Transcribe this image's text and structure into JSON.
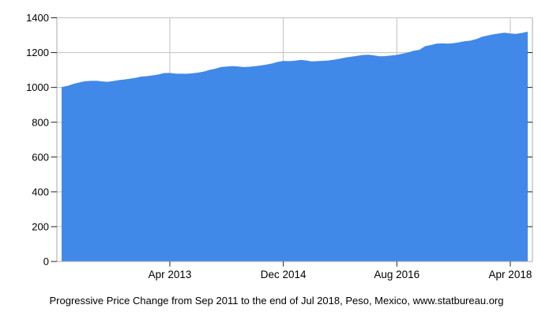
{
  "page": {
    "background": "#ffffff"
  },
  "chart_data": {
    "type": "area",
    "title": "",
    "caption": "Progressive Price Change from Sep 2011 to the end of Jul 2018, Peso, Mexico, www.statbureau.org",
    "x": [
      "Sep 2011",
      "Oct 2011",
      "Nov 2011",
      "Dec 2011",
      "Jan 2012",
      "Feb 2012",
      "Mar 2012",
      "Apr 2012",
      "May 2012",
      "Jun 2012",
      "Jul 2012",
      "Aug 2012",
      "Sep 2012",
      "Oct 2012",
      "Nov 2012",
      "Dec 2012",
      "Jan 2013",
      "Feb 2013",
      "Mar 2013",
      "Apr 2013",
      "May 2013",
      "Jun 2013",
      "Jul 2013",
      "Aug 2013",
      "Sep 2013",
      "Oct 2013",
      "Nov 2013",
      "Dec 2013",
      "Jan 2014",
      "Feb 2014",
      "Mar 2014",
      "Apr 2014",
      "May 2014",
      "Jun 2014",
      "Jul 2014",
      "Aug 2014",
      "Sep 2014",
      "Oct 2014",
      "Nov 2014",
      "Dec 2014",
      "Jan 2015",
      "Feb 2015",
      "Mar 2015",
      "Apr 2015",
      "May 2015",
      "Jun 2015",
      "Jul 2015",
      "Aug 2015",
      "Sep 2015",
      "Oct 2015",
      "Nov 2015",
      "Dec 2015",
      "Jan 2016",
      "Feb 2016",
      "Mar 2016",
      "Apr 2016",
      "May 2016",
      "Jun 2016",
      "Jul 2016",
      "Aug 2016",
      "Sep 2016",
      "Oct 2016",
      "Nov 2016",
      "Dec 2016",
      "Jan 2017",
      "Feb 2017",
      "Mar 2017",
      "Apr 2017",
      "May 2017",
      "Jun 2017",
      "Jul 2017",
      "Aug 2017",
      "Sep 2017",
      "Oct 2017",
      "Nov 2017",
      "Dec 2017",
      "Jan 2018",
      "Feb 2018",
      "Mar 2018",
      "Apr 2018",
      "May 2018",
      "Jun 2018",
      "Jul 2018"
    ],
    "series": [
      {
        "name": "Progressive price change, Peso, Mexico",
        "values": [
          1000.0,
          1006.7,
          1017.6,
          1025.9,
          1033.2,
          1035.3,
          1035.9,
          1032.7,
          1029.4,
          1034.1,
          1039.9,
          1043.0,
          1047.6,
          1052.9,
          1060.1,
          1062.5,
          1066.8,
          1072.0,
          1079.9,
          1080.6,
          1077.0,
          1076.4,
          1076.1,
          1079.1,
          1083.2,
          1088.4,
          1098.5,
          1104.8,
          1114.6,
          1117.4,
          1120.4,
          1118.3,
          1114.7,
          1116.6,
          1119.7,
          1123.8,
          1128.7,
          1134.9,
          1144.1,
          1149.7,
          1148.7,
          1150.9,
          1155.6,
          1152.6,
          1146.8,
          1148.8,
          1150.5,
          1152.9,
          1157.2,
          1163.1,
          1169.5,
          1174.3,
          1178.7,
          1183.9,
          1185.7,
          1181.9,
          1176.6,
          1177.9,
          1181.0,
          1184.3,
          1191.5,
          1198.8,
          1208.1,
          1213.7,
          1234.3,
          1241.5,
          1249.1,
          1250.6,
          1249.1,
          1252.2,
          1257.0,
          1263.1,
          1267.0,
          1275.0,
          1288.2,
          1295.8,
          1302.6,
          1307.6,
          1311.8,
          1307.3,
          1305.2,
          1310.3,
          1317.4
        ]
      }
    ],
    "x_tick_labels": [
      "Apr 2013",
      "Dec 2014",
      "Aug 2016",
      "Apr 2018"
    ],
    "x_tick_indices": [
      19,
      39,
      59,
      79
    ],
    "y_ticks": [
      0,
      200,
      400,
      600,
      800,
      1000,
      1200,
      1400
    ],
    "ylim": [
      0,
      1400
    ],
    "grid": true,
    "legend": "none",
    "area_color": "#4189E8",
    "grid_color": "#C0C0C0",
    "border_color": "#AAAAAA",
    "tick_color": "#222222",
    "label_color": "#000000"
  }
}
